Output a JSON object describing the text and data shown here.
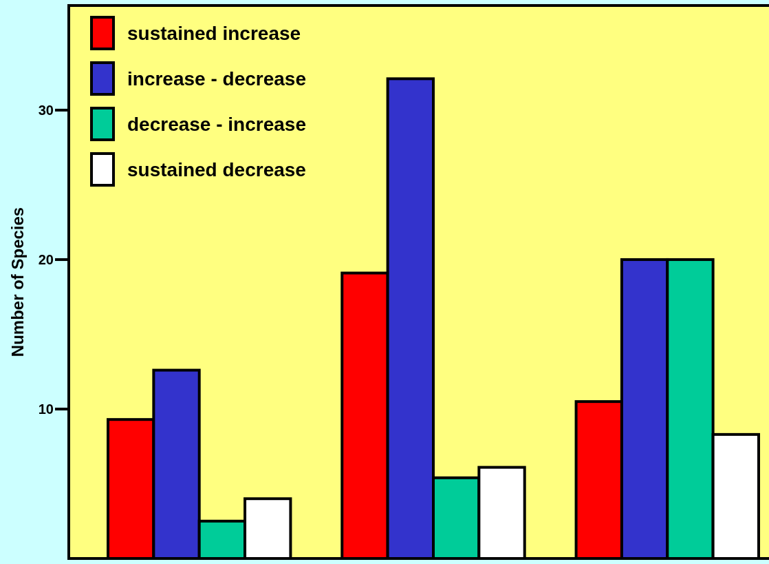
{
  "chart_data": {
    "type": "bar",
    "ylabel": "Number of Species",
    "categories": [
      null,
      null,
      null
    ],
    "series": [
      {
        "name": "sustained increase",
        "color": "#ff0000",
        "values": [
          9.3,
          19.1,
          10.5
        ]
      },
      {
        "name": "increase - decrease",
        "color": "#3333cc",
        "values": [
          12.6,
          32.1,
          20
        ]
      },
      {
        "name": "decrease - increase",
        "color": "#00cc99",
        "values": [
          2.5,
          5.4,
          20
        ]
      },
      {
        "name": "sustained decrease",
        "color": "#ffffff",
        "values": [
          4.0,
          6.1,
          8.3
        ]
      }
    ],
    "ylim": [
      0,
      37
    ],
    "yticks": [
      10,
      20,
      30
    ],
    "grid": false,
    "legend": "top left"
  }
}
